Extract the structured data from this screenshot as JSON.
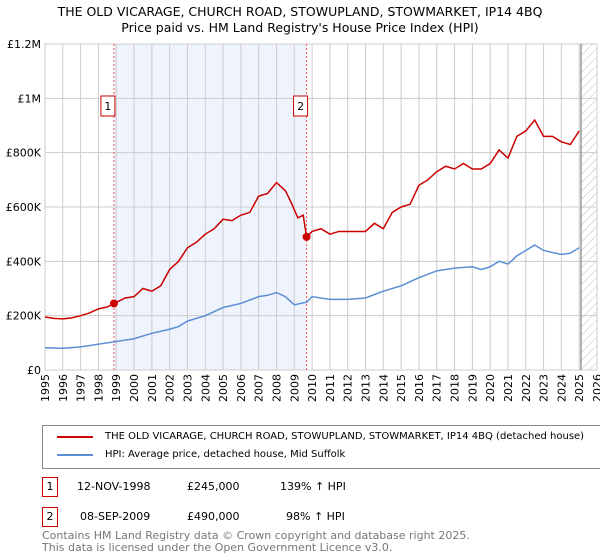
{
  "chart_data": {
    "type": "line",
    "title": "THE OLD VICARAGE, CHURCH ROAD, STOWUPLAND, STOWMARKET, IP14 4BQ",
    "subtitle": "Price paid vs. HM Land Registry's House Price Index (HPI)",
    "xlim": [
      1995,
      2026
    ],
    "ylim": [
      0,
      1200000
    ],
    "yticks": [
      {
        "v": 0,
        "label": "£0"
      },
      {
        "v": 200000,
        "label": "£200K"
      },
      {
        "v": 400000,
        "label": "£400K"
      },
      {
        "v": 600000,
        "label": "£600K"
      },
      {
        "v": 800000,
        "label": "£800K"
      },
      {
        "v": 1000000,
        "label": "£1M"
      },
      {
        "v": 1200000,
        "label": "£1.2M"
      }
    ],
    "xticks": [
      "1995",
      "1996",
      "1997",
      "1998",
      "1999",
      "2000",
      "2001",
      "2002",
      "2003",
      "2004",
      "2005",
      "2006",
      "2007",
      "2008",
      "2009",
      "2010",
      "2011",
      "2012",
      "2013",
      "2014",
      "2015",
      "2016",
      "2017",
      "2018",
      "2019",
      "2020",
      "2021",
      "2022",
      "2023",
      "2024",
      "2025",
      "2026"
    ],
    "grid": true,
    "shaded_period": [
      1998.87,
      2009.69
    ],
    "forecast_hatch_from": 2025.1,
    "series": [
      {
        "name": "THE OLD VICARAGE, CHURCH ROAD, STOWUPLAND, STOWMARKET, IP14 4BQ (detached house)",
        "color": "#cc0000",
        "x": [
          1995,
          1995.5,
          1996,
          1996.5,
          1997,
          1997.5,
          1998,
          1998.5,
          1998.87,
          1999.2,
          1999.5,
          2000,
          2000.5,
          2001,
          2001.5,
          2002,
          2002.5,
          2003,
          2003.5,
          2004,
          2004.5,
          2005,
          2005.5,
          2006,
          2006.5,
          2007,
          2007.5,
          2008,
          2008.5,
          2008.8,
          2009.2,
          2009.5,
          2009.69,
          2010,
          2010.5,
          2011,
          2011.5,
          2012,
          2012.5,
          2013,
          2013.5,
          2014,
          2014.5,
          2015,
          2015.5,
          2016,
          2016.5,
          2017,
          2017.5,
          2018,
          2018.5,
          2019,
          2019.5,
          2020,
          2020.5,
          2021,
          2021.5,
          2022,
          2022.5,
          2023,
          2023.5,
          2024,
          2024.5,
          2025
        ],
        "y": [
          195000,
          190000,
          188000,
          192000,
          200000,
          210000,
          225000,
          232000,
          245000,
          255000,
          265000,
          270000,
          300000,
          290000,
          310000,
          370000,
          400000,
          450000,
          470000,
          500000,
          520000,
          555000,
          550000,
          570000,
          580000,
          640000,
          650000,
          690000,
          660000,
          620000,
          560000,
          570000,
          490000,
          510000,
          520000,
          500000,
          510000,
          510000,
          510000,
          510000,
          540000,
          520000,
          580000,
          600000,
          610000,
          680000,
          700000,
          730000,
          750000,
          740000,
          760000,
          740000,
          740000,
          760000,
          810000,
          780000,
          860000,
          880000,
          920000,
          860000,
          860000,
          840000,
          830000,
          880000
        ]
      },
      {
        "name": "HPI: Average price, detached house, Mid Suffolk",
        "color": "#5b8fd4",
        "x": [
          1995,
          1996,
          1997,
          1998,
          1999,
          2000,
          2001,
          2002,
          2002.5,
          2003,
          2004,
          2005,
          2006,
          2007,
          2007.5,
          2008,
          2008.5,
          2009,
          2009.7,
          2010,
          2011,
          2012,
          2013,
          2014,
          2015,
          2016,
          2017,
          2018,
          2019,
          2019.5,
          2020,
          2020.5,
          2021,
          2021.5,
          2022,
          2022.5,
          2023,
          2024,
          2024.5,
          2025
        ],
        "y": [
          82000,
          80000,
          85000,
          95000,
          105000,
          115000,
          135000,
          150000,
          160000,
          180000,
          200000,
          230000,
          245000,
          270000,
          275000,
          285000,
          270000,
          240000,
          250000,
          270000,
          260000,
          260000,
          265000,
          290000,
          310000,
          340000,
          365000,
          375000,
          380000,
          370000,
          380000,
          400000,
          390000,
          420000,
          440000,
          460000,
          440000,
          425000,
          430000,
          450000
        ]
      }
    ],
    "sales": [
      {
        "label": "1",
        "x": 1998.87,
        "y": 245000
      },
      {
        "label": "2",
        "x": 2009.69,
        "y": 490000
      }
    ]
  },
  "legend": {
    "property": "THE OLD VICARAGE, CHURCH ROAD, STOWUPLAND, STOWMARKET, IP14 4BQ (detached house)",
    "hpi": "HPI: Average price, detached house, Mid Suffolk"
  },
  "transactions": [
    {
      "num": "1",
      "date": "12-NOV-1998",
      "price": "£245,000",
      "hpi": "139% ↑ HPI"
    },
    {
      "num": "2",
      "date": "08-SEP-2009",
      "price": "£490,000",
      "hpi": "98% ↑ HPI"
    }
  ],
  "footer": {
    "line1": "Contains HM Land Registry data © Crown copyright and database right 2025.",
    "line2": "This data is licensed under the Open Government Licence v3.0."
  }
}
